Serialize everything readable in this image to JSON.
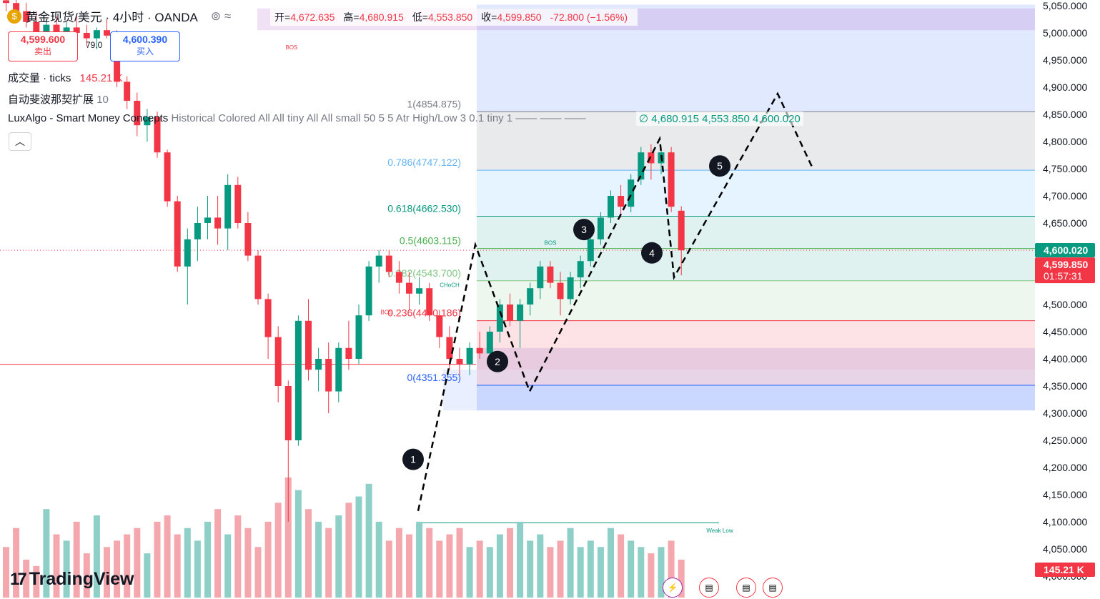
{
  "header": {
    "symbol": "黄金现货/美元 · 4小时 · OANDA",
    "open_label": "开=",
    "open": "4,672.635",
    "high_label": "高=",
    "high": "4,680.915",
    "low_label": "低=",
    "low": "4,553.850",
    "close_label": "收=",
    "close": "4,599.850",
    "change": "-72.800 (−1.56%)"
  },
  "trade": {
    "sell_price": "4,599.600",
    "sell_label": "卖出",
    "spread": "79.0",
    "buy_price": "4,600.390",
    "buy_label": "买入"
  },
  "indicators": {
    "volume_title": "成交量 · ticks",
    "volume_value": "145.21 K",
    "fib_title": "自动斐波那契扩展",
    "fib_value": "10",
    "lux_title": "LuxAlgo - Smart Money Concepts",
    "lux_params": "Historical Colored All All tiny All All small 50 5 5 Atr High/Low 3 0.1 tiny 1 —— —— ——",
    "lux_values": "∅  4,680.915  4,553.850  4,600.020"
  },
  "price_axis": {
    "ticks": [
      "5,050.000",
      "5,000.000",
      "4,950.000",
      "4,900.000",
      "4,850.000",
      "4,800.000",
      "4,750.000",
      "4,700.000",
      "4,650.000",
      "4,600.000",
      "4,550.000",
      "4,500.000",
      "4,450.000",
      "4,400.000",
      "4,350.000",
      "4,300.000",
      "4,250.000",
      "4,200.000",
      "4,150.000",
      "4,100.000",
      "4,050.000",
      "4,000.000"
    ],
    "tick_values": [
      5050,
      5000,
      4950,
      4900,
      4850,
      4800,
      4750,
      4700,
      4650,
      4600,
      4550,
      4500,
      4450,
      4400,
      4350,
      4300,
      4250,
      4200,
      4150,
      4100,
      4050,
      4000
    ],
    "badge_green": "4,600.020",
    "badge_red_price": "4,599.850",
    "badge_red_time": "01:57:31",
    "badge_volume": "145.21 K"
  },
  "colors": {
    "up": "#089981",
    "down": "#f23645",
    "vol_up": "#8ecfc8",
    "vol_down": "#f4a8ae"
  },
  "icons": {
    "logo": "tradingview-logo-icon",
    "events": [
      "lightning-icon",
      "us-flag-icon",
      "us-flag-icon",
      "us-flag-icon"
    ]
  },
  "watermark": "TradingView",
  "chart_data": {
    "type": "candlestick",
    "ylim": [
      4000,
      5050
    ],
    "candles": [
      {
        "o": 5060,
        "h": 5070,
        "l": 5040,
        "c": 5055
      },
      {
        "o": 5055,
        "h": 5065,
        "l": 5030,
        "c": 5040
      },
      {
        "o": 5040,
        "h": 5055,
        "l": 5010,
        "c": 5020
      },
      {
        "o": 5020,
        "h": 5040,
        "l": 4990,
        "c": 5000
      },
      {
        "o": 5000,
        "h": 5025,
        "l": 4975,
        "c": 5015
      },
      {
        "o": 5015,
        "h": 5030,
        "l": 4985,
        "c": 4995
      },
      {
        "o": 4995,
        "h": 5020,
        "l": 4980,
        "c": 5010
      },
      {
        "o": 5010,
        "h": 5030,
        "l": 4990,
        "c": 5000
      },
      {
        "o": 5000,
        "h": 5015,
        "l": 4975,
        "c": 4990
      },
      {
        "o": 4990,
        "h": 5010,
        "l": 4970,
        "c": 5005
      },
      {
        "o": 5005,
        "h": 5025,
        "l": 4990,
        "c": 4995
      },
      {
        "o": 4995,
        "h": 5005,
        "l": 4900,
        "c": 4910
      },
      {
        "o": 4910,
        "h": 4920,
        "l": 4860,
        "c": 4875
      },
      {
        "o": 4875,
        "h": 4890,
        "l": 4810,
        "c": 4830
      },
      {
        "o": 4830,
        "h": 4860,
        "l": 4800,
        "c": 4845
      },
      {
        "o": 4845,
        "h": 4855,
        "l": 4770,
        "c": 4780
      },
      {
        "o": 4780,
        "h": 4785,
        "l": 4680,
        "c": 4690
      },
      {
        "o": 4690,
        "h": 4700,
        "l": 4560,
        "c": 4570
      },
      {
        "o": 4570,
        "h": 4640,
        "l": 4500,
        "c": 4620
      },
      {
        "o": 4620,
        "h": 4680,
        "l": 4580,
        "c": 4650
      },
      {
        "o": 4650,
        "h": 4700,
        "l": 4620,
        "c": 4660
      },
      {
        "o": 4660,
        "h": 4700,
        "l": 4610,
        "c": 4640
      },
      {
        "o": 4640,
        "h": 4740,
        "l": 4600,
        "c": 4720
      },
      {
        "o": 4720,
        "h": 4735,
        "l": 4640,
        "c": 4650
      },
      {
        "o": 4650,
        "h": 4670,
        "l": 4580,
        "c": 4590
      },
      {
        "o": 4590,
        "h": 4600,
        "l": 4500,
        "c": 4510
      },
      {
        "o": 4510,
        "h": 4520,
        "l": 4400,
        "c": 4440
      },
      {
        "o": 4440,
        "h": 4460,
        "l": 4320,
        "c": 4350
      },
      {
        "o": 4350,
        "h": 4360,
        "l": 4100,
        "c": 4250
      },
      {
        "o": 4250,
        "h": 4480,
        "l": 4240,
        "c": 4470
      },
      {
        "o": 4470,
        "h": 4510,
        "l": 4360,
        "c": 4380
      },
      {
        "o": 4380,
        "h": 4420,
        "l": 4340,
        "c": 4400
      },
      {
        "o": 4400,
        "h": 4430,
        "l": 4300,
        "c": 4340
      },
      {
        "o": 4340,
        "h": 4430,
        "l": 4320,
        "c": 4420
      },
      {
        "o": 4420,
        "h": 4470,
        "l": 4380,
        "c": 4400
      },
      {
        "o": 4400,
        "h": 4500,
        "l": 4390,
        "c": 4480
      },
      {
        "o": 4480,
        "h": 4580,
        "l": 4470,
        "c": 4570
      },
      {
        "o": 4570,
        "h": 4600,
        "l": 4540,
        "c": 4590
      },
      {
        "o": 4590,
        "h": 4600,
        "l": 4550,
        "c": 4560
      },
      {
        "o": 4560,
        "h": 4580,
        "l": 4520,
        "c": 4540
      },
      {
        "o": 4540,
        "h": 4560,
        "l": 4490,
        "c": 4520
      },
      {
        "o": 4520,
        "h": 4550,
        "l": 4500,
        "c": 4530
      },
      {
        "o": 4530,
        "h": 4540,
        "l": 4470,
        "c": 4480
      },
      {
        "o": 4480,
        "h": 4490,
        "l": 4420,
        "c": 4440
      },
      {
        "o": 4440,
        "h": 4460,
        "l": 4380,
        "c": 4400
      },
      {
        "o": 4400,
        "h": 4420,
        "l": 4370,
        "c": 4390
      },
      {
        "o": 4390,
        "h": 4430,
        "l": 4370,
        "c": 4420
      },
      {
        "o": 4420,
        "h": 4450,
        "l": 4400,
        "c": 4410
      },
      {
        "o": 4410,
        "h": 4460,
        "l": 4400,
        "c": 4450
      },
      {
        "o": 4450,
        "h": 4510,
        "l": 4430,
        "c": 4500
      },
      {
        "o": 4500,
        "h": 4520,
        "l": 4460,
        "c": 4470
      },
      {
        "o": 4470,
        "h": 4510,
        "l": 4420,
        "c": 4500
      },
      {
        "o": 4500,
        "h": 4540,
        "l": 4480,
        "c": 4530
      },
      {
        "o": 4530,
        "h": 4580,
        "l": 4510,
        "c": 4570
      },
      {
        "o": 4570,
        "h": 4580,
        "l": 4530,
        "c": 4540
      },
      {
        "o": 4540,
        "h": 4560,
        "l": 4480,
        "c": 4510
      },
      {
        "o": 4510,
        "h": 4560,
        "l": 4500,
        "c": 4550
      },
      {
        "o": 4550,
        "h": 4590,
        "l": 4530,
        "c": 4580
      },
      {
        "o": 4580,
        "h": 4630,
        "l": 4570,
        "c": 4620
      },
      {
        "o": 4620,
        "h": 4670,
        "l": 4610,
        "c": 4660
      },
      {
        "o": 4660,
        "h": 4710,
        "l": 4650,
        "c": 4700
      },
      {
        "o": 4700,
        "h": 4720,
        "l": 4660,
        "c": 4680
      },
      {
        "o": 4680,
        "h": 4740,
        "l": 4670,
        "c": 4730
      },
      {
        "o": 4730,
        "h": 4790,
        "l": 4720,
        "c": 4780
      },
      {
        "o": 4780,
        "h": 4795,
        "l": 4730,
        "c": 4760
      },
      {
        "o": 4760,
        "h": 4790,
        "l": 4740,
        "c": 4780
      },
      {
        "o": 4780,
        "h": 4790,
        "l": 4670,
        "c": 4680
      },
      {
        "o": 4672.635,
        "h": 4680.915,
        "l": 4553.85,
        "c": 4599.85
      }
    ],
    "volume": [
      40,
      55,
      30,
      25,
      70,
      50,
      45,
      60,
      35,
      65,
      40,
      45,
      50,
      55,
      35,
      60,
      65,
      50,
      55,
      45,
      60,
      70,
      50,
      65,
      55,
      40,
      60,
      75,
      95,
      85,
      70,
      60,
      55,
      65,
      75,
      80,
      90,
      60,
      45,
      55,
      50,
      60,
      55,
      45,
      50,
      55,
      40,
      45,
      40,
      50,
      55,
      60,
      45,
      50,
      40,
      45,
      55,
      40,
      45,
      40,
      55,
      50,
      45,
      40,
      35,
      40,
      45,
      30
    ],
    "fib_levels": [
      {
        "label": "1(4854.875)",
        "value": 4854.875
      },
      {
        "label": "0.786(4747.122)",
        "value": 4747.122
      },
      {
        "label": "0.618(4662.530)",
        "value": 4662.53
      },
      {
        "label": "0.5(4603.115)",
        "value": 4603.115
      },
      {
        "label": "0.382(4543.700)",
        "value": 4543.7
      },
      {
        "label": "0.236(4470.186)",
        "value": 4470.186
      },
      {
        "label": "0(4351.355)",
        "value": 4351.355
      }
    ],
    "waves": [
      {
        "label": "1",
        "price": 4215
      },
      {
        "label": "2",
        "price": 4395
      },
      {
        "label": "3",
        "price": 4638
      },
      {
        "label": "4",
        "price": 4595
      },
      {
        "label": "5",
        "price": 4755
      }
    ],
    "smc_labels": [
      "BOS",
      "BOS",
      "CHoCH",
      "BOS",
      "Weak Low"
    ],
    "current_price": 4599.85
  }
}
